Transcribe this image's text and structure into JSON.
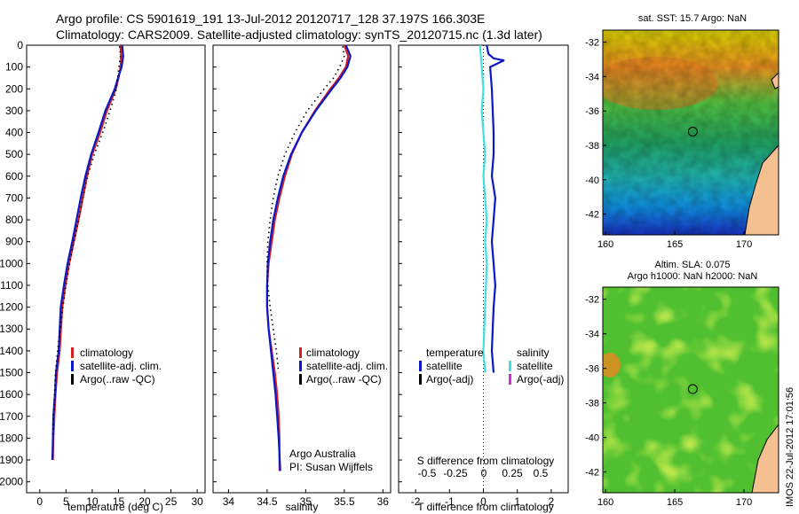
{
  "header": {
    "line1": "Argo profile: CS 5901619_191 13-Jul-2012 20120717_128 37.197S 166.303E",
    "line2": "Climatology: CARS2009. Satellite-adjusted climatology: synTS_20120715.nc (1.3d later)"
  },
  "colors": {
    "climatology": "#d42020",
    "satellite": "#0a18c8",
    "argo": "#000000",
    "sal_satellite": "#40e0e0",
    "argo_adj": "#d030d0"
  },
  "chart_data": [
    {
      "type": "line",
      "id": "temperature",
      "xlabel": "temperature (deg C)",
      "ylabel": "",
      "xlim": [
        -2.5,
        31.5
      ],
      "xticks": [
        0,
        5,
        10,
        15,
        20,
        25,
        30
      ],
      "ylim": [
        0,
        2050
      ],
      "yticks": [
        0,
        100,
        200,
        300,
        400,
        500,
        600,
        700,
        800,
        900,
        1000,
        1100,
        1200,
        1300,
        1400,
        1500,
        1600,
        1700,
        1800,
        1900,
        2000
      ],
      "y_reversed": true,
      "legend": {
        "position": "lower-center",
        "entries": [
          "climatology",
          "satellite-adj. clim.",
          "Argo(..raw -QC)"
        ]
      },
      "series": [
        {
          "name": "climatology",
          "x": [
            15.4,
            15.5,
            15.4,
            15.0,
            14.5,
            12.8,
            11.5,
            10.0,
            9.0,
            8.2,
            7.4,
            6.5,
            5.6,
            4.9,
            4.3,
            3.8,
            3.3,
            3.0,
            2.8,
            2.6,
            2.5
          ],
          "y": [
            0,
            50,
            100,
            150,
            200,
            300,
            400,
            500,
            600,
            700,
            800,
            900,
            1000,
            1100,
            1200,
            1400,
            1500,
            1600,
            1700,
            1800,
            1900
          ]
        },
        {
          "name": "satellite-adj. clim.",
          "x": [
            15.7,
            15.9,
            15.6,
            14.9,
            14.3,
            12.5,
            11.2,
            9.8,
            8.7,
            7.8,
            7.0,
            6.2,
            5.3,
            4.6,
            4.0,
            3.6,
            3.1,
            2.9,
            2.6,
            2.5,
            2.4
          ],
          "y": [
            0,
            50,
            100,
            150,
            200,
            300,
            400,
            500,
            600,
            700,
            800,
            900,
            1000,
            1100,
            1200,
            1400,
            1500,
            1600,
            1700,
            1800,
            1900
          ]
        },
        {
          "name": "Argo(..raw -QC)",
          "x": [
            15.2,
            15.4,
            15.1,
            14.6,
            13.4,
            12.0,
            10.4,
            9.1,
            8.2,
            7.4,
            6.5,
            5.7,
            5.0,
            4.4,
            3.9,
            3.4,
            3.0,
            2.8,
            2.6,
            2.5
          ],
          "y": [
            5,
            50,
            100,
            200,
            300,
            400,
            500,
            600,
            700,
            800,
            900,
            1000,
            1100,
            1200,
            1300,
            1400,
            1500,
            1600,
            1700,
            1800
          ]
        }
      ]
    },
    {
      "type": "line",
      "id": "salinity",
      "xlabel": "salinity",
      "ylabel": "",
      "xlim": [
        33.8,
        36.1
      ],
      "xticks": [
        34,
        34.5,
        35,
        35.5,
        36
      ],
      "ylim": [
        0,
        2050
      ],
      "y_reversed": true,
      "legend": {
        "position": "lower-center",
        "entries": [
          "climatology",
          "satellite-adj. clim.",
          "Argo(..raw -QC)"
        ]
      },
      "annotation": [
        "Argo Australia",
        "PI: Susan Wijffels"
      ],
      "series": [
        {
          "name": "climatology",
          "x": [
            35.5,
            35.55,
            35.52,
            35.43,
            35.32,
            35.12,
            34.95,
            34.82,
            34.73,
            34.66,
            34.6,
            34.56,
            34.52,
            34.5,
            34.5,
            34.52,
            34.56,
            34.6,
            34.63,
            34.65,
            34.66,
            34.66
          ],
          "y": [
            0,
            50,
            100,
            150,
            200,
            300,
            400,
            500,
            600,
            700,
            800,
            900,
            1000,
            1100,
            1200,
            1300,
            1400,
            1500,
            1600,
            1700,
            1800,
            1950
          ]
        },
        {
          "name": "satellite-adj. clim.",
          "x": [
            35.52,
            35.58,
            35.54,
            35.45,
            35.34,
            35.13,
            34.95,
            34.81,
            34.71,
            34.64,
            34.58,
            34.54,
            34.51,
            34.5,
            34.5,
            34.52,
            34.55,
            34.58,
            34.61,
            34.63,
            34.65,
            34.67
          ],
          "y": [
            0,
            50,
            100,
            150,
            200,
            300,
            400,
            500,
            600,
            700,
            800,
            900,
            1000,
            1100,
            1200,
            1300,
            1400,
            1500,
            1600,
            1700,
            1800,
            1950
          ]
        },
        {
          "name": "Argo(..raw -QC)",
          "x": [
            35.48,
            35.5,
            35.44,
            35.36,
            35.24,
            35.02,
            34.86,
            34.73,
            34.64,
            34.58,
            34.54,
            34.51,
            34.5,
            34.51,
            34.54,
            34.58,
            34.62,
            34.65
          ],
          "y": [
            5,
            50,
            100,
            150,
            200,
            300,
            400,
            500,
            600,
            700,
            800,
            900,
            1000,
            1100,
            1200,
            1300,
            1400,
            1500
          ]
        }
      ]
    },
    {
      "type": "line",
      "id": "difference",
      "xlabel": "T difference from climatology",
      "xlabel_top": "S difference from climatology",
      "xlim": [
        -2.5,
        2.5
      ],
      "xticks": [
        -2,
        -1,
        0,
        1,
        2
      ],
      "xticks_s": [
        "-0.5",
        "-0.25",
        "0",
        "0.25",
        "0.5"
      ],
      "ylim": [
        0,
        2050
      ],
      "y_reversed": true,
      "legend": {
        "position": "lower-center",
        "headers": [
          "temperature",
          "salinity"
        ],
        "entries": [
          "satellite",
          "Argo(-adj)",
          "satellite",
          "Argo(-adj)"
        ]
      },
      "series": [
        {
          "name": "temperature satellite",
          "x": [
            0.1,
            0.15,
            0.3,
            0.6,
            0.2,
            0.25,
            0.3,
            0.3,
            0.25,
            0.35,
            0.3,
            0.25,
            0.3,
            0.35,
            0.3,
            0.25,
            0.3
          ],
          "y": [
            0,
            40,
            60,
            70,
            100,
            200,
            400,
            500,
            600,
            700,
            800,
            900,
            1000,
            1100,
            1200,
            1400,
            1500
          ]
        },
        {
          "name": "salinity satellite",
          "x": [
            -0.1,
            -0.05,
            0.0,
            -0.05,
            0.0,
            0.05,
            0.0,
            0.05,
            0.1,
            0.05,
            0.1,
            0.05,
            0.0,
            0.05
          ],
          "y": [
            0,
            100,
            200,
            300,
            400,
            500,
            600,
            700,
            800,
            900,
            1000,
            1200,
            1400,
            1500
          ]
        }
      ]
    },
    {
      "type": "heatmap",
      "id": "sst-map",
      "title": "sat. SST: 15.7  Argo: NaN",
      "xlim": [
        159.8,
        172.5
      ],
      "ylim": [
        -43.2,
        -31.3
      ],
      "xticks": [
        160,
        165,
        170
      ],
      "yticks": [
        -32,
        -34,
        -36,
        -38,
        -40,
        -42
      ],
      "marker": {
        "lon": 166.3,
        "lat": -37.2
      }
    },
    {
      "type": "heatmap",
      "id": "sla-map",
      "title_line1": "Altim. SLA: 0.075",
      "title_line2": "Argo h1000: NaN h2000: NaN",
      "xlim": [
        159.8,
        172.5
      ],
      "ylim": [
        -43.2,
        -31.3
      ],
      "xticks": [
        160,
        165,
        170
      ],
      "yticks": [
        -32,
        -34,
        -36,
        -38,
        -40,
        -42
      ],
      "marker": {
        "lon": 166.3,
        "lat": -37.2
      }
    }
  ],
  "footer_stamp": "IMOS 22-Jul-2012 17:01:56"
}
